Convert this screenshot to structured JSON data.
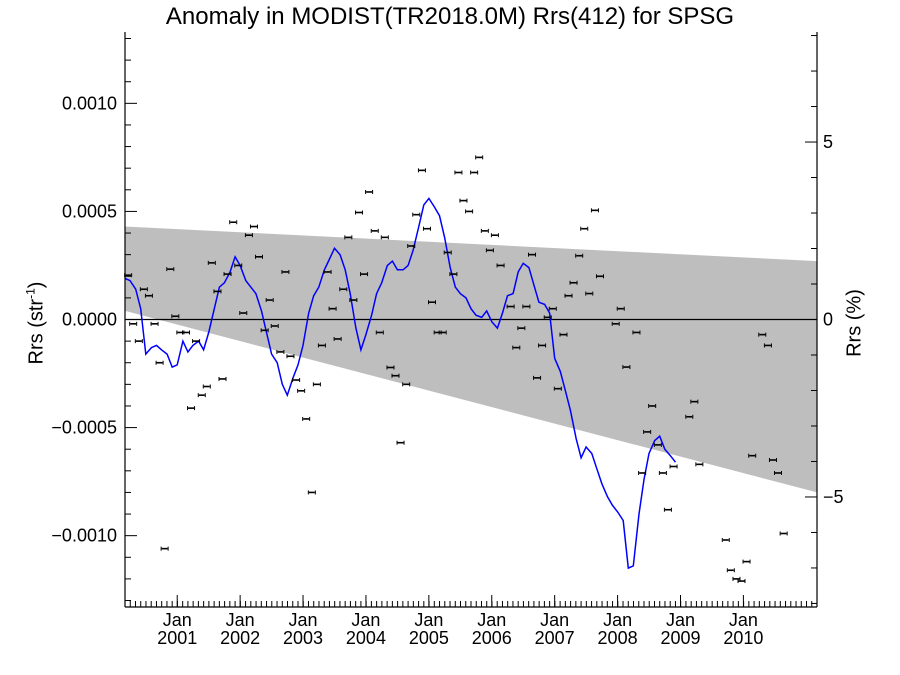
{
  "chart_data": {
    "type": "scatter",
    "title": "Anomaly in MODIST(TR2018.0M) Rrs(412) for SPSG",
    "ylabel": "Rrs (str",
    "ylabel_sup": "-1",
    "ylabel_close": ")",
    "ylabel_right": "Rrs (%)",
    "xlim": [
      2000.0,
      2011.0
    ],
    "ylim": [
      -0.00133,
      0.00133
    ],
    "ylim_right": [
      -8.1,
      8.1
    ],
    "y_ticks": [
      {
        "v": 0.001,
        "label": "0.0010"
      },
      {
        "v": 0.0005,
        "label": "0.0005"
      },
      {
        "v": 0.0,
        "label": "0.0000"
      },
      {
        "v": -0.0005,
        "label": "−0.0005"
      },
      {
        "v": -0.001,
        "label": "−0.0010"
      }
    ],
    "y_right_ticks": [
      {
        "v": 5,
        "label": "5"
      },
      {
        "v": 0,
        "label": "0"
      },
      {
        "v": -5,
        "label": "−5"
      }
    ],
    "x_ticks": [
      {
        "v": 2000.83,
        "month": "Jan",
        "year": "2001"
      },
      {
        "v": 2001.83,
        "month": "Jan",
        "year": "2002"
      },
      {
        "v": 2002.83,
        "month": "Jan",
        "year": "2003"
      },
      {
        "v": 2003.83,
        "month": "Jan",
        "year": "2004"
      },
      {
        "v": 2004.83,
        "month": "Jan",
        "year": "2005"
      },
      {
        "v": 2005.83,
        "month": "Jan",
        "year": "2006"
      },
      {
        "v": 2006.83,
        "month": "Jan",
        "year": "2007"
      },
      {
        "v": 2007.83,
        "month": "Jan",
        "year": "2008"
      },
      {
        "v": 2008.83,
        "month": "Jan",
        "year": "2009"
      },
      {
        "v": 2009.83,
        "month": "Jan",
        "year": "2010"
      }
    ],
    "grey_band": {
      "upper": [
        [
          2000.0,
          0.00043
        ],
        [
          2011.0,
          0.00027
        ]
      ],
      "lower": [
        [
          2000.0,
          4e-05
        ],
        [
          2011.0,
          -0.0008
        ]
      ]
    },
    "zero_line": 0.0,
    "points": [
      [
        2000.05,
        0.000205
      ],
      [
        2000.13,
        -2e-05
      ],
      [
        2000.22,
        -0.0001
      ],
      [
        2000.3,
        0.00014
      ],
      [
        2000.38,
        0.00011
      ],
      [
        2000.47,
        -2e-05
      ],
      [
        2000.55,
        -0.0002
      ],
      [
        2000.63,
        -0.00106
      ],
      [
        2000.72,
        0.000233
      ],
      [
        2000.8,
        1.5e-05
      ],
      [
        2000.88,
        -6e-05
      ],
      [
        2000.97,
        -6e-05
      ],
      [
        2001.05,
        -0.00041
      ],
      [
        2001.13,
        -0.0001
      ],
      [
        2001.22,
        -0.00035
      ],
      [
        2001.3,
        -0.00031
      ],
      [
        2001.38,
        0.000262
      ],
      [
        2001.47,
        0.00013
      ],
      [
        2001.55,
        -0.000275
      ],
      [
        2001.63,
        0.00021
      ],
      [
        2001.72,
        0.00045
      ],
      [
        2001.8,
        0.00025
      ],
      [
        2001.88,
        3e-05
      ],
      [
        2001.97,
        0.00039
      ],
      [
        2002.05,
        0.00043
      ],
      [
        2002.13,
        0.00029
      ],
      [
        2002.22,
        -5e-05
      ],
      [
        2002.3,
        9e-05
      ],
      [
        2002.38,
        -3e-05
      ],
      [
        2002.47,
        -0.00015
      ],
      [
        2002.55,
        0.00022
      ],
      [
        2002.63,
        -0.00017
      ],
      [
        2002.72,
        -0.00028
      ],
      [
        2002.8,
        -0.00033
      ],
      [
        2002.88,
        -0.00046
      ],
      [
        2002.97,
        -0.0008
      ],
      [
        2003.05,
        -0.0003
      ],
      [
        2003.13,
        -0.00012
      ],
      [
        2003.22,
        0.00022
      ],
      [
        2003.3,
        5e-05
      ],
      [
        2003.38,
        -9e-05
      ],
      [
        2003.47,
        0.00014
      ],
      [
        2003.55,
        0.00038
      ],
      [
        2003.63,
        9e-05
      ],
      [
        2003.72,
        0.000495
      ],
      [
        2003.8,
        0.00021
      ],
      [
        2003.88,
        0.00059
      ],
      [
        2003.97,
        0.00041
      ],
      [
        2004.05,
        -6e-05
      ],
      [
        2004.13,
        0.00038
      ],
      [
        2004.22,
        -0.000222
      ],
      [
        2004.3,
        -0.00026
      ],
      [
        2004.38,
        -0.00057
      ],
      [
        2004.47,
        -0.0003
      ],
      [
        2004.55,
        0.00034
      ],
      [
        2004.63,
        0.000485
      ],
      [
        2004.72,
        0.00069
      ],
      [
        2004.8,
        0.00042
      ],
      [
        2004.88,
        8e-05
      ],
      [
        2004.97,
        -6e-05
      ],
      [
        2005.05,
        -6e-05
      ],
      [
        2005.13,
        0.00031
      ],
      [
        2005.22,
        0.00021
      ],
      [
        2005.3,
        0.00068
      ],
      [
        2005.38,
        0.00055
      ],
      [
        2005.47,
        0.0005
      ],
      [
        2005.55,
        0.00068
      ],
      [
        2005.63,
        0.00075
      ],
      [
        2005.72,
        0.00041
      ],
      [
        2005.8,
        0.00032
      ],
      [
        2005.88,
        0.00039
      ],
      [
        2005.97,
        0.00025
      ],
      [
        2006.13,
        6e-05
      ],
      [
        2006.22,
        -0.00013
      ],
      [
        2006.3,
        -4e-05
      ],
      [
        2006.38,
        6e-05
      ],
      [
        2006.47,
        0.0003
      ],
      [
        2006.55,
        -0.00027
      ],
      [
        2006.63,
        -0.00012
      ],
      [
        2006.72,
        1e-05
      ],
      [
        2006.8,
        5e-05
      ],
      [
        2006.88,
        -0.00032
      ],
      [
        2006.97,
        -7e-05
      ],
      [
        2007.05,
        0.00011
      ],
      [
        2007.13,
        0.00017
      ],
      [
        2007.22,
        0.000295
      ],
      [
        2007.3,
        0.00042
      ],
      [
        2007.38,
        0.00012
      ],
      [
        2007.47,
        0.000505
      ],
      [
        2007.55,
        0.0002
      ],
      [
        2007.8,
        -2e-05
      ],
      [
        2007.88,
        5e-05
      ],
      [
        2007.97,
        -0.00022
      ],
      [
        2008.13,
        -6e-05
      ],
      [
        2008.22,
        -0.00071
      ],
      [
        2008.3,
        -0.00052
      ],
      [
        2008.38,
        -0.0004
      ],
      [
        2008.47,
        -0.00058
      ],
      [
        2008.55,
        -0.00071
      ],
      [
        2008.63,
        -0.00088
      ],
      [
        2008.72,
        -0.00068
      ],
      [
        2008.97,
        -0.00045
      ],
      [
        2009.05,
        -0.00038
      ],
      [
        2009.13,
        -0.00067
      ],
      [
        2009.55,
        -0.00102
      ],
      [
        2009.63,
        -0.00116
      ],
      [
        2009.72,
        -0.0012
      ],
      [
        2009.8,
        -0.00121
      ],
      [
        2009.88,
        -0.00112
      ],
      [
        2009.97,
        -0.00063
      ],
      [
        2010.13,
        -7e-05
      ],
      [
        2010.22,
        -0.00012
      ],
      [
        2010.3,
        -0.00065
      ],
      [
        2010.38,
        -0.00071
      ],
      [
        2010.47,
        -0.00099
      ]
    ],
    "smooth_line": [
      [
        2000.0,
        0.00019
      ],
      [
        2000.08,
        0.00018
      ],
      [
        2000.17,
        0.00014
      ],
      [
        2000.25,
        5e-05
      ],
      [
        2000.33,
        -0.00016
      ],
      [
        2000.42,
        -0.00013
      ],
      [
        2000.5,
        -0.00012
      ],
      [
        2000.58,
        -0.00014
      ],
      [
        2000.67,
        -0.00016
      ],
      [
        2000.75,
        -0.00022
      ],
      [
        2000.83,
        -0.00021
      ],
      [
        2000.92,
        -0.0001
      ],
      [
        2001.0,
        -0.00015
      ],
      [
        2001.08,
        -0.00012
      ],
      [
        2001.17,
        -0.0001
      ],
      [
        2001.25,
        -0.00014
      ],
      [
        2001.33,
        -6e-05
      ],
      [
        2001.42,
        5e-05
      ],
      [
        2001.5,
        0.00015
      ],
      [
        2001.58,
        0.00017
      ],
      [
        2001.67,
        0.00022
      ],
      [
        2001.75,
        0.00029
      ],
      [
        2001.83,
        0.00025
      ],
      [
        2001.92,
        0.00018
      ],
      [
        2002.0,
        0.00015
      ],
      [
        2002.08,
        0.00012
      ],
      [
        2002.17,
        4e-05
      ],
      [
        2002.25,
        -6e-05
      ],
      [
        2002.33,
        -0.00016
      ],
      [
        2002.42,
        -0.0002
      ],
      [
        2002.5,
        -0.0003
      ],
      [
        2002.58,
        -0.00035
      ],
      [
        2002.67,
        -0.00027
      ],
      [
        2002.75,
        -0.00021
      ],
      [
        2002.83,
        -0.00012
      ],
      [
        2002.92,
        3e-05
      ],
      [
        2003.0,
        0.00011
      ],
      [
        2003.08,
        0.00015
      ],
      [
        2003.17,
        0.00023
      ],
      [
        2003.25,
        0.00028
      ],
      [
        2003.33,
        0.00033
      ],
      [
        2003.42,
        0.0003
      ],
      [
        2003.5,
        0.00023
      ],
      [
        2003.58,
        0.00012
      ],
      [
        2003.67,
        -4e-05
      ],
      [
        2003.75,
        -0.00014
      ],
      [
        2003.83,
        -7e-05
      ],
      [
        2003.92,
        2e-05
      ],
      [
        2004.0,
        0.00012
      ],
      [
        2004.08,
        0.00017
      ],
      [
        2004.17,
        0.00025
      ],
      [
        2004.25,
        0.00027
      ],
      [
        2004.33,
        0.00023
      ],
      [
        2004.42,
        0.00023
      ],
      [
        2004.5,
        0.00025
      ],
      [
        2004.58,
        0.00032
      ],
      [
        2004.67,
        0.00043
      ],
      [
        2004.75,
        0.00053
      ],
      [
        2004.83,
        0.00056
      ],
      [
        2004.92,
        0.00052
      ],
      [
        2005.0,
        0.00048
      ],
      [
        2005.08,
        0.00038
      ],
      [
        2005.17,
        0.00024
      ],
      [
        2005.25,
        0.00015
      ],
      [
        2005.33,
        0.00012
      ],
      [
        2005.42,
        0.0001
      ],
      [
        2005.5,
        5e-05
      ],
      [
        2005.58,
        2e-05
      ],
      [
        2005.67,
        1e-05
      ],
      [
        2005.75,
        4e-05
      ],
      [
        2005.83,
        -1e-05
      ],
      [
        2005.92,
        -4e-05
      ],
      [
        2006.0,
        3e-05
      ],
      [
        2006.08,
        0.00011
      ],
      [
        2006.17,
        0.00012
      ],
      [
        2006.25,
        0.00022
      ],
      [
        2006.33,
        0.00026
      ],
      [
        2006.42,
        0.00024
      ],
      [
        2006.5,
        0.00016
      ],
      [
        2006.58,
        8e-05
      ],
      [
        2006.67,
        7e-05
      ],
      [
        2006.75,
        3e-05
      ],
      [
        2006.83,
        -0.00018
      ],
      [
        2006.92,
        -0.00024
      ],
      [
        2007.0,
        -0.00033
      ],
      [
        2007.08,
        -0.00042
      ],
      [
        2007.17,
        -0.00055
      ],
      [
        2007.25,
        -0.00064
      ],
      [
        2007.33,
        -0.00059
      ],
      [
        2007.42,
        -0.00062
      ],
      [
        2007.5,
        -0.00069
      ],
      [
        2007.58,
        -0.00076
      ],
      [
        2007.67,
        -0.00082
      ],
      [
        2007.75,
        -0.00086
      ],
      [
        2007.83,
        -0.00089
      ],
      [
        2007.92,
        -0.00093
      ],
      [
        2008.0,
        -0.00115
      ],
      [
        2008.08,
        -0.00114
      ],
      [
        2008.17,
        -0.0009
      ],
      [
        2008.25,
        -0.00074
      ],
      [
        2008.33,
        -0.00062
      ],
      [
        2008.42,
        -0.00056
      ],
      [
        2008.5,
        -0.00054
      ],
      [
        2008.58,
        -0.0006
      ],
      [
        2008.67,
        -0.00063
      ],
      [
        2008.75,
        -0.00066
      ]
    ]
  }
}
